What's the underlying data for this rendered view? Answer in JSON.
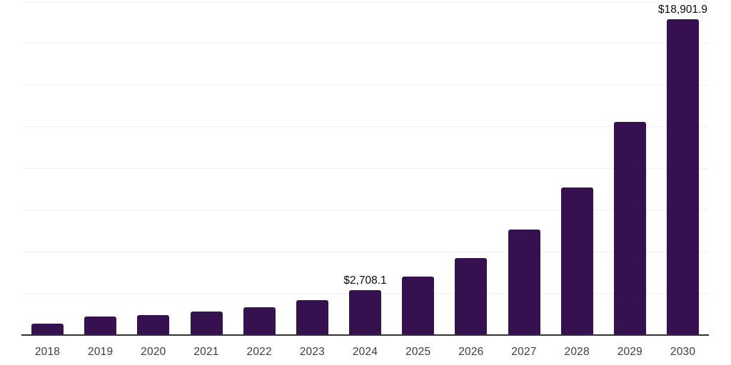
{
  "chart_data": {
    "type": "bar",
    "title": "",
    "xlabel": "",
    "ylabel": "",
    "categories": [
      "2018",
      "2019",
      "2020",
      "2021",
      "2022",
      "2023",
      "2024",
      "2025",
      "2026",
      "2027",
      "2028",
      "2029",
      "2030"
    ],
    "values": [
      670,
      1130,
      1200,
      1400,
      1680,
      2100,
      2708.1,
      3510,
      4620,
      6330,
      8820,
      12760,
      18901.9
    ],
    "data_labels": [
      "",
      "",
      "",
      "",
      "",
      "",
      "$2,708.1",
      "",
      "",
      "",
      "",
      "",
      "$18,901.9"
    ],
    "ylim": [
      0,
      20000
    ],
    "gridline_step": 2500,
    "grid": "horizontal-only",
    "legend": "none",
    "y_axis_tick_labels": "none",
    "colors": {
      "bar": "#351150",
      "axis": "#333333",
      "gridline": "#f1f1f4",
      "x_tick_text": "#3d3d3d",
      "data_label_text": "#0b0b0b",
      "background": "#ffffff"
    }
  }
}
